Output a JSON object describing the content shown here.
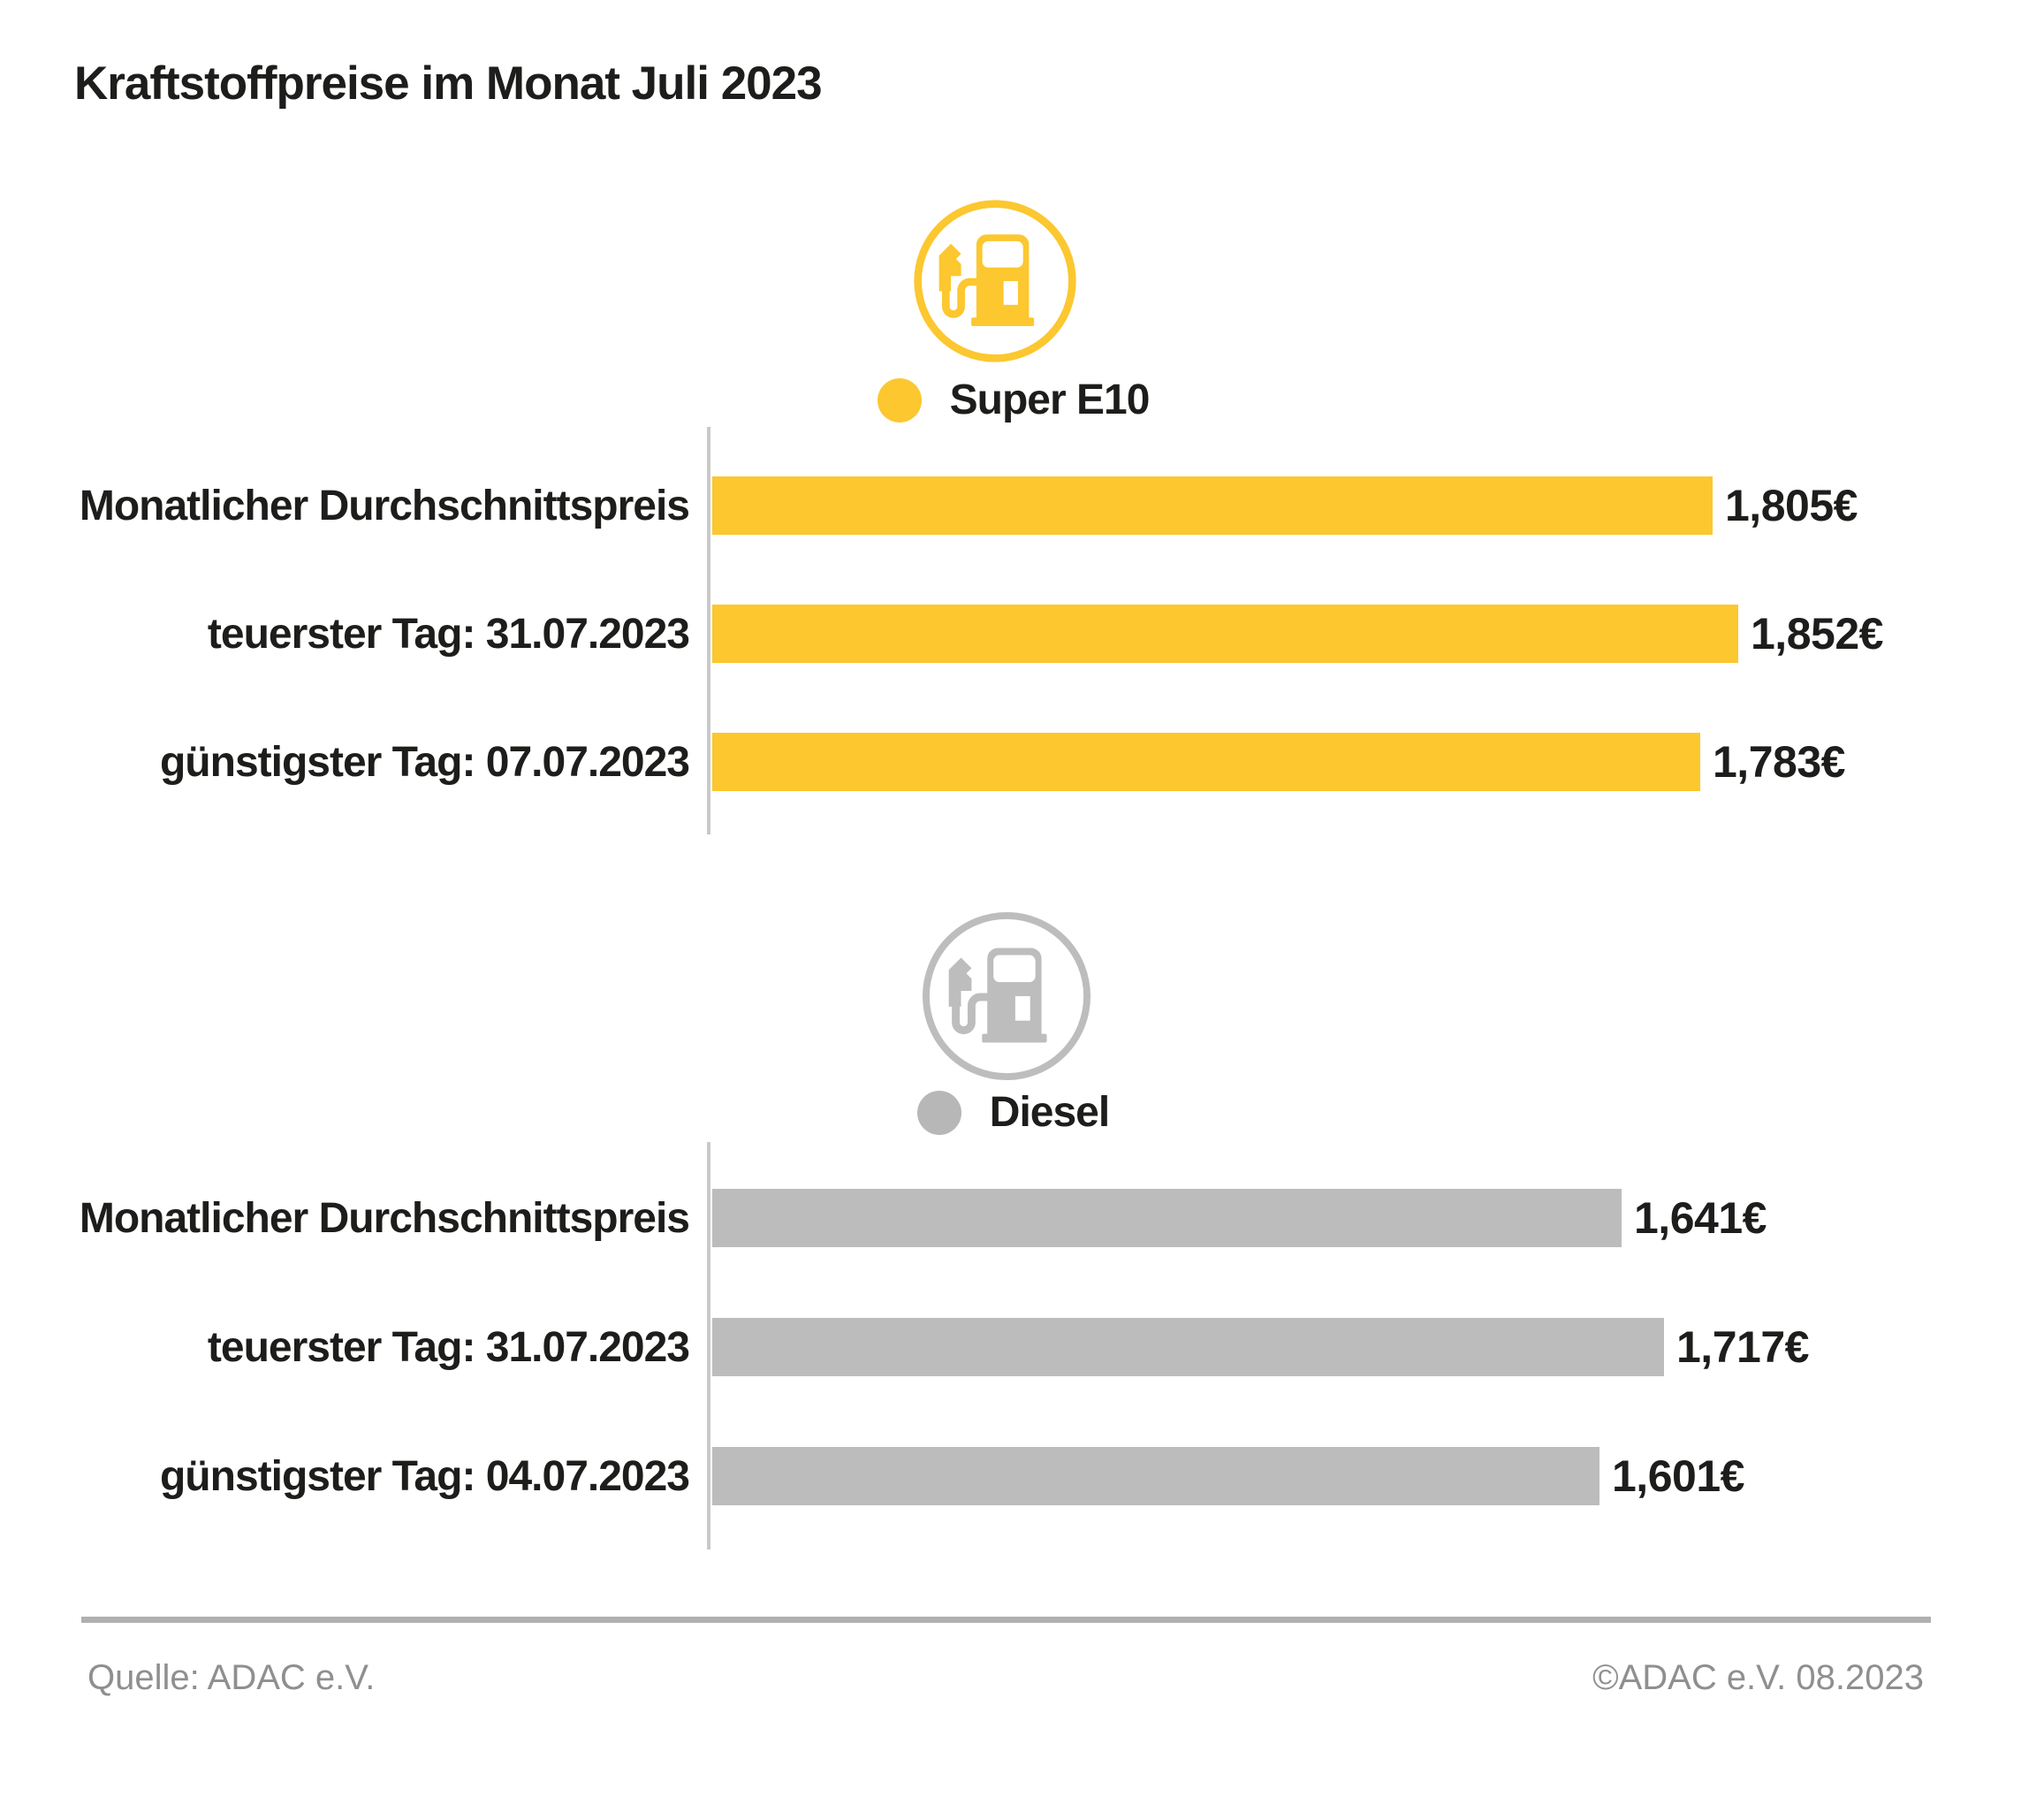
{
  "title": "Kraftstoffpreise im Monat Juli 2023",
  "colors": {
    "super_e10": "#fcc72f",
    "diesel": "#bcbcbc",
    "axis": "#c9c9c9",
    "footer_gray": "#8f8f8f",
    "text": "#1d1d1b"
  },
  "chart_data": [
    {
      "type": "bar",
      "orientation": "horizontal",
      "series_name": "Super E10",
      "icon": "fuel-pump-icon",
      "color": "#fcc72f",
      "unit": "EUR pro Liter",
      "categories": [
        "Monatlicher Durchschnittspreis",
        "teuerster Tag: 31.07.2023",
        "günstigster Tag: 07.07.2023"
      ],
      "values": [
        1.805,
        1.852,
        1.783
      ],
      "value_labels": [
        "1,805€",
        "1,852€",
        "1,783€"
      ],
      "xlim": [
        0,
        2.4
      ],
      "grid": false,
      "legend_position": "top-center"
    },
    {
      "type": "bar",
      "orientation": "horizontal",
      "series_name": "Diesel",
      "icon": "fuel-pump-icon",
      "color": "#bcbcbc",
      "unit": "EUR pro Liter",
      "categories": [
        "Monatlicher Durchschnittspreis",
        "teuerster Tag: 31.07.2023",
        "günstigster Tag: 04.07.2023"
      ],
      "values": [
        1.641,
        1.717,
        1.601
      ],
      "value_labels": [
        "1,641€",
        "1,717€",
        "1,601€"
      ],
      "xlim": [
        0,
        2.4
      ],
      "grid": false,
      "legend_position": "top-center"
    }
  ],
  "footer": {
    "source": "Quelle: ADAC e.V.",
    "copyright": "©ADAC e.V. 08.2023"
  }
}
